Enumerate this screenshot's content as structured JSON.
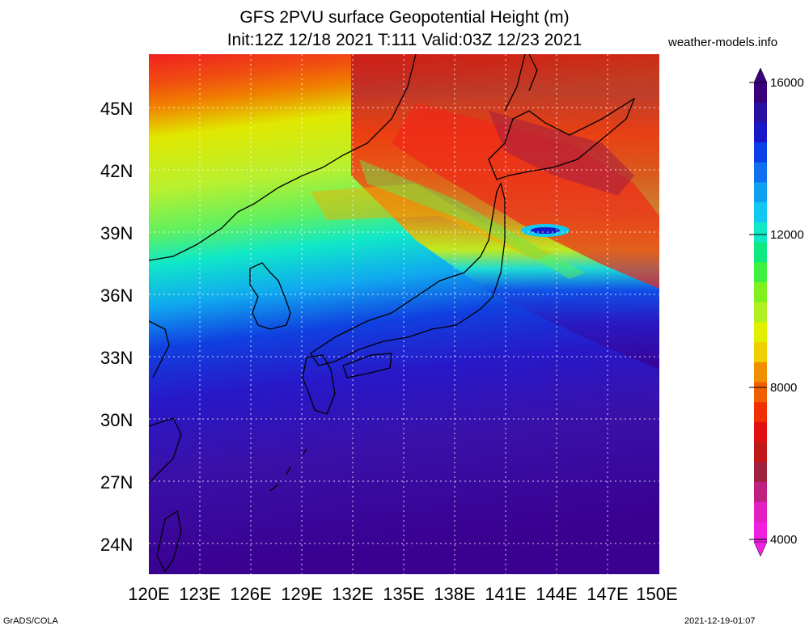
{
  "title": {
    "line1": "GFS 2PVU surface Geopotential Height (m)",
    "line2": "Init:12Z 12/18 2021 T:111 Valid:03Z 12/23 2021"
  },
  "site": "weather-models.info",
  "footer": {
    "left": "GrADS/COLA",
    "right": "2021-12-19-01:07"
  },
  "map": {
    "lon_range": [
      120,
      150
    ],
    "lat_range": [
      22.5,
      47.5
    ],
    "lat_labels": [
      "45N",
      "42N",
      "39N",
      "36N",
      "33N",
      "30N",
      "27N",
      "24N"
    ],
    "lon_labels": [
      "120E",
      "123E",
      "126E",
      "129E",
      "132E",
      "135E",
      "138E",
      "141E",
      "144E",
      "147E",
      "150E"
    ],
    "grid": "dotted"
  },
  "colorbar": {
    "labels": [
      "16000",
      "12000",
      "8000",
      "4000"
    ],
    "colors": [
      "#3a007a",
      "#2a10a0",
      "#1818c8",
      "#0a40e8",
      "#1070f0",
      "#10a0f0",
      "#10c8f0",
      "#10e8c8",
      "#10e880",
      "#40f040",
      "#80f020",
      "#b0f020",
      "#e0f000",
      "#f0d000",
      "#f09000",
      "#f06000",
      "#f03000",
      "#e01010",
      "#c01818",
      "#a02040",
      "#c02080",
      "#e020c0",
      "#f020e0"
    ]
  }
}
